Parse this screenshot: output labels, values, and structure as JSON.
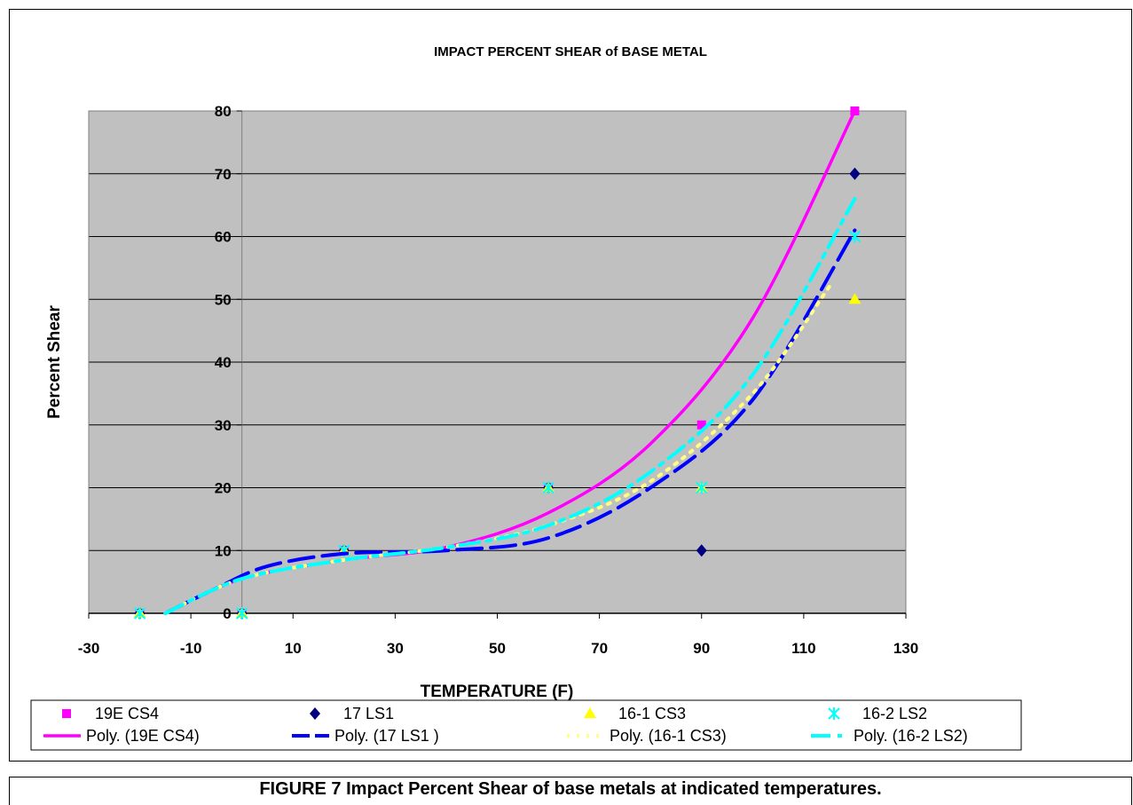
{
  "chart_data": {
    "type": "scatter",
    "title": "IMPACT PERCENT SHEAR of BASE METAL",
    "xlabel": "TEMPERATURE (F)",
    "ylabel": "Percent Shear",
    "xlim": [
      -30,
      130
    ],
    "ylim": [
      0,
      80
    ],
    "xticks": [
      "-30",
      "-10",
      "10",
      "30",
      "50",
      "70",
      "90",
      "110",
      "130"
    ],
    "yticks": [
      "0",
      "10",
      "20",
      "30",
      "40",
      "50",
      "60",
      "70",
      "80"
    ],
    "grid": "horizontal",
    "legend_position": "bottom",
    "series": [
      {
        "name": "19E CS4",
        "marker": "square",
        "color": "#ff00ff",
        "x": [
          -20,
          0,
          20,
          60,
          90,
          120
        ],
        "y": [
          0,
          0,
          10,
          20,
          30,
          80
        ]
      },
      {
        "name": "17 LS1",
        "marker": "diamond",
        "color": "#000080",
        "x": [
          -20,
          0,
          20,
          60,
          90,
          120
        ],
        "y": [
          0,
          0,
          10,
          20,
          10,
          70
        ]
      },
      {
        "name": "16-1 CS3",
        "marker": "triangle",
        "color": "#ffff00",
        "x": [
          -20,
          0,
          20,
          60,
          90,
          120
        ],
        "y": [
          0,
          0,
          10,
          20,
          20,
          50
        ]
      },
      {
        "name": "16-2 LS2",
        "marker": "star",
        "color": "#00ffff",
        "x": [
          -20,
          0,
          20,
          60,
          90,
          120
        ],
        "y": [
          0,
          0,
          10,
          20,
          20,
          60
        ]
      }
    ],
    "trendlines": [
      {
        "name": "Poly. (19E CS4)",
        "color": "#ff00ff",
        "dash": "solid",
        "x": [
          -15,
          0,
          20,
          40,
          60,
          80,
          100,
          120
        ],
        "y": [
          0,
          5.5,
          8.5,
          10.5,
          16,
          27,
          47,
          80
        ]
      },
      {
        "name": "Poly. (17 LS1 )",
        "color": "#0000ff",
        "dash": "longdash",
        "x": [
          -15,
          -5,
          5,
          20,
          40,
          60,
          80,
          100,
          120
        ],
        "y": [
          0,
          4,
          7.5,
          9.5,
          10,
          12,
          20,
          34,
          61
        ]
      },
      {
        "name": "Poly. (16-1 CS3)",
        "color": "#ffff80",
        "dash": "dot",
        "x": [
          -15,
          0,
          20,
          40,
          60,
          80,
          100,
          115
        ],
        "y": [
          0,
          5.5,
          8.5,
          10.5,
          14,
          21,
          35,
          52
        ]
      },
      {
        "name": "Poly. (16-2 LS2)",
        "color": "#00ffff",
        "dash": "dashdot",
        "x": [
          -15,
          0,
          20,
          40,
          60,
          80,
          100,
          120
        ],
        "y": [
          0,
          5.5,
          8.5,
          10.5,
          14,
          22.5,
          38,
          66
        ]
      }
    ]
  },
  "caption": "FIGURE 7 Impact Percent Shear of base metals at indicated temperatures."
}
